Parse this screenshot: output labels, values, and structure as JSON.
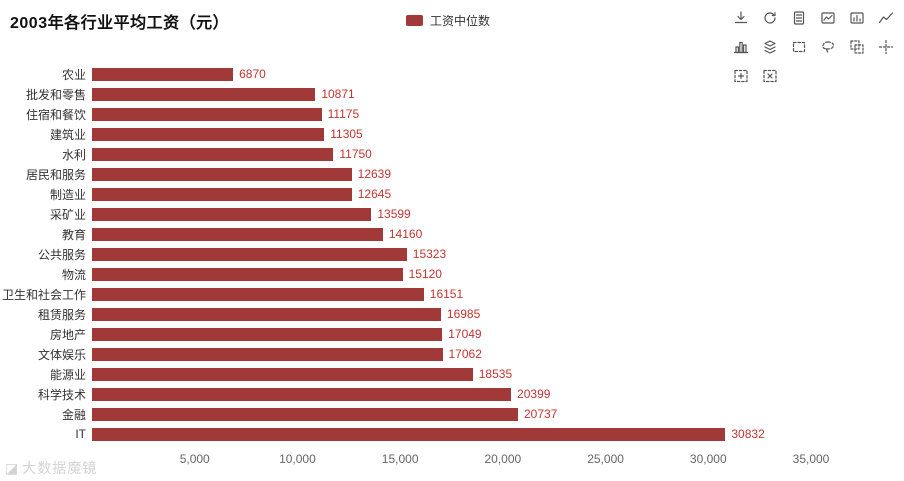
{
  "title": "2003年各行业平均工资（元）",
  "legend": {
    "label": "工资中位数"
  },
  "colors": {
    "bar": "#A23939",
    "value_label": "#C23531",
    "category_label": "#333333",
    "axis_label": "#666666",
    "icon": "#555555",
    "watermark": "#C9C9C9",
    "title": "#111111"
  },
  "watermark": {
    "icon": "◪",
    "text": "大数据魔镜"
  },
  "toolbox": {
    "rows": [
      [
        "download",
        "refresh",
        "data-view",
        "switch-line",
        "switch-bar",
        "polyline"
      ],
      [
        "bar-chart",
        "stack",
        "rect-select",
        "lasso-select",
        "keep-select",
        "crosshair"
      ],
      [
        "zoom-select",
        "clear-select"
      ]
    ]
  },
  "chart_data": {
    "type": "bar",
    "orientation": "horizontal",
    "title": "2003年各行业平均工资（元）",
    "series_name": "工资中位数",
    "categories": [
      "农业",
      "批发和零售",
      "住宿和餐饮",
      "建筑业",
      "水利",
      "居民和服务",
      "制造业",
      "采矿业",
      "教育",
      "公共服务",
      "物流",
      "卫生和社会工作",
      "租赁服务",
      "房地产",
      "文体娱乐",
      "能源业",
      "科学技术",
      "金融",
      "IT"
    ],
    "values": [
      6870,
      10871,
      11175,
      11305,
      11750,
      12639,
      12645,
      13599,
      14160,
      15323,
      15120,
      16151,
      16985,
      17049,
      17062,
      18535,
      20399,
      20737,
      30832
    ],
    "xlim": [
      0,
      35000
    ],
    "x_ticks": [
      5000,
      10000,
      15000,
      20000,
      25000,
      30000,
      35000
    ],
    "x_tick_labels": [
      "5,000",
      "10,000",
      "15,000",
      "20,000",
      "25,000",
      "30,000",
      "35,000"
    ],
    "grid": false,
    "legend_position": "top",
    "value_labels": true
  }
}
